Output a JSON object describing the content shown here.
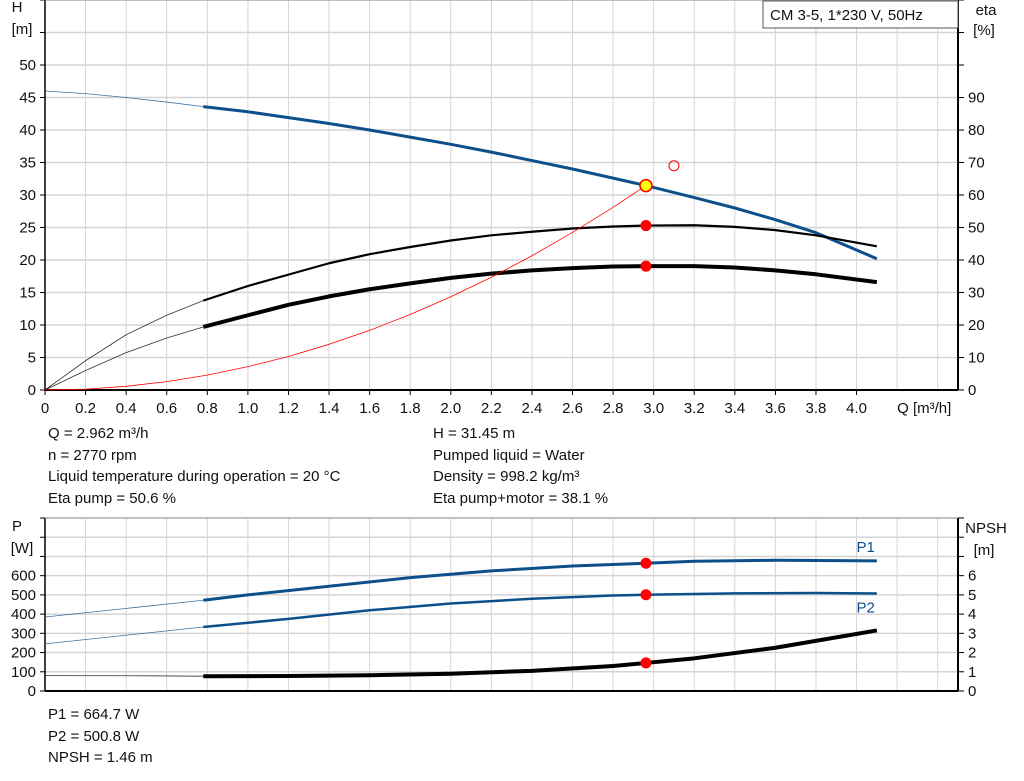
{
  "chart_data": [
    {
      "type": "line",
      "title_box": "CM 3-5, 1*230 V, 50Hz",
      "xlabel": "Q [m³/h]",
      "xlim": [
        0,
        4.5
      ],
      "xticks": [
        "0",
        "0.2",
        "0.4",
        "0.6",
        "0.8",
        "1.0",
        "1.2",
        "1.4",
        "1.6",
        "1.8",
        "2.0",
        "2.2",
        "2.4",
        "2.6",
        "2.8",
        "3.0",
        "3.2",
        "3.4",
        "3.6",
        "3.8",
        "4.0"
      ],
      "ylabel_left": [
        "H",
        "[m]"
      ],
      "ylim_left": [
        0,
        60
      ],
      "yticks_left": [
        "0",
        "5",
        "10",
        "15",
        "20",
        "25",
        "30",
        "35",
        "40",
        "45",
        "50"
      ],
      "ylabel_right": [
        "eta",
        "[%]"
      ],
      "ylim_right": [
        0,
        120
      ],
      "yticks_right": [
        "0",
        "10",
        "20",
        "30",
        "40",
        "50",
        "60",
        "70",
        "80",
        "90"
      ],
      "grid": true,
      "series": [
        {
          "id": "H",
          "axis": "left",
          "color": "#0d4f8b",
          "x": [
            0,
            0.2,
            0.4,
            0.6,
            0.78,
            1.0,
            1.2,
            1.4,
            1.6,
            1.8,
            2.0,
            2.2,
            2.4,
            2.6,
            2.8,
            2.962,
            3.2,
            3.4,
            3.6,
            3.8,
            4.1
          ],
          "y": [
            46,
            45.6,
            45,
            44.3,
            43.6,
            42.8,
            41.9,
            41,
            40,
            38.9,
            37.8,
            36.6,
            35.3,
            34,
            32.6,
            31.45,
            29.6,
            28,
            26.2,
            24.2,
            20.2
          ]
        },
        {
          "id": "eta_pump",
          "axis": "right",
          "color": "#000000",
          "x": [
            0,
            0.2,
            0.4,
            0.6,
            0.78,
            1.0,
            1.2,
            1.4,
            1.6,
            1.8,
            2.0,
            2.2,
            2.4,
            2.6,
            2.8,
            2.962,
            3.2,
            3.4,
            3.6,
            3.8,
            4.1
          ],
          "y": [
            0,
            9,
            17,
            23,
            27.5,
            32,
            35.5,
            39,
            41.8,
            44,
            46,
            47.6,
            48.7,
            49.7,
            50.3,
            50.6,
            50.7,
            50.2,
            49.2,
            47.6,
            44.2
          ]
        },
        {
          "id": "eta_pump_motor",
          "axis": "right",
          "color": "#000000",
          "x": [
            0,
            0.2,
            0.4,
            0.6,
            0.78,
            1.0,
            1.2,
            1.4,
            1.6,
            1.8,
            2.0,
            2.2,
            2.4,
            2.6,
            2.8,
            2.962,
            3.2,
            3.4,
            3.6,
            3.8,
            4.1
          ],
          "y": [
            0,
            6,
            11.5,
            16,
            19.4,
            23,
            26.2,
            28.8,
            31,
            32.8,
            34.5,
            35.8,
            36.8,
            37.5,
            38,
            38.1,
            38.1,
            37.7,
            36.8,
            35.6,
            33.2
          ]
        },
        {
          "id": "system_curve",
          "axis": "left",
          "color": "#ff0000",
          "x": [
            0,
            0.2,
            0.4,
            0.6,
            0.8,
            1.0,
            1.2,
            1.4,
            1.6,
            1.8,
            2.0,
            2.2,
            2.4,
            2.6,
            2.8,
            2.962
          ],
          "y": [
            0,
            0.14,
            0.57,
            1.29,
            2.29,
            3.59,
            5.16,
            7.03,
            9.18,
            11.62,
            14.34,
            17.35,
            20.65,
            24.24,
            28.11,
            31.45
          ]
        }
      ],
      "duty_point": {
        "Q": 2.962,
        "H": 31.45,
        "eta_pump": 50.6,
        "eta_pump_motor": 38.1
      },
      "requested_point": {
        "Q": 3.1,
        "H": 34.5
      }
    },
    {
      "type": "line",
      "xlim": [
        0,
        4.5
      ],
      "ylabel_left": [
        "P",
        "[W]"
      ],
      "ylim_left": [
        0,
        900
      ],
      "yticks_left": [
        "0",
        "100",
        "200",
        "300",
        "400",
        "500",
        "600"
      ],
      "ylabel_right": [
        "NPSH",
        "[m]"
      ],
      "ylim_right": [
        0,
        9
      ],
      "yticks_right": [
        "0",
        "1",
        "2",
        "3",
        "4",
        "5",
        "6"
      ],
      "grid": true,
      "series": [
        {
          "id": "P1",
          "name": "P1",
          "axis": "left",
          "color": "#0d4f8b",
          "x": [
            0,
            0.78,
            1.0,
            1.4,
            1.8,
            2.2,
            2.6,
            2.962,
            3.2,
            3.6,
            4.1
          ],
          "y": [
            385,
            472,
            500,
            545,
            590,
            625,
            650,
            664.7,
            675,
            680,
            677
          ]
        },
        {
          "id": "P2",
          "name": "P2",
          "axis": "left",
          "color": "#0d4f8b",
          "x": [
            0,
            0.78,
            1.2,
            1.6,
            2.0,
            2.4,
            2.8,
            2.962,
            3.4,
            3.8,
            4.1
          ],
          "y": [
            245,
            333,
            375,
            420,
            455,
            480,
            497,
            500.8,
            508,
            510,
            507
          ]
        },
        {
          "id": "NPSH",
          "axis": "right",
          "color": "#000000",
          "x": [
            0,
            0.5,
            0.78,
            1.2,
            1.6,
            2.0,
            2.4,
            2.8,
            2.962,
            3.2,
            3.6,
            4.1
          ],
          "y": [
            0.8,
            0.79,
            0.77,
            0.78,
            0.82,
            0.9,
            1.05,
            1.3,
            1.46,
            1.7,
            2.25,
            3.15
          ]
        }
      ],
      "duty_point": {
        "Q": 2.962,
        "P1": 664.7,
        "P2": 500.8,
        "NPSH": 1.46
      }
    }
  ],
  "info_top_left": [
    "Q = 2.962 m³/h",
    "n = 2770 rpm",
    "Liquid temperature during operation = 20 °C",
    "Eta pump = 50.6 %"
  ],
  "info_top_right": [
    "H = 31.45 m",
    "Pumped liquid = Water",
    "Density = 998.2 kg/m³",
    "Eta pump+motor = 38.1 %"
  ],
  "info_bottom": [
    "P1 = 664.7 W",
    "P2 = 500.8 W",
    "NPSH = 1.46 m"
  ],
  "colors": {
    "grid": "#d4d4d4",
    "curve_blue": "#0d4f8b",
    "marker": "#ff0000",
    "duty_fill": "#ffff00"
  }
}
